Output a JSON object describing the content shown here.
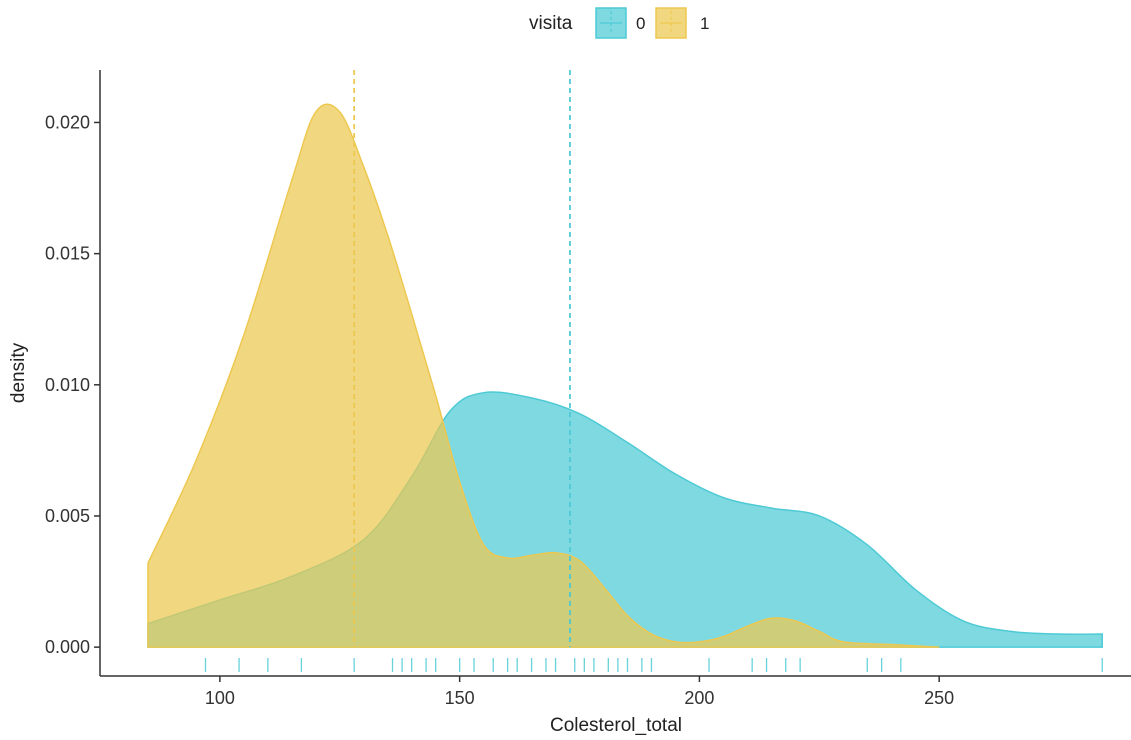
{
  "chart_data": {
    "type": "area",
    "title": "",
    "xlabel": "Colesterol_total",
    "ylabel": "density",
    "xlim": [
      75,
      290
    ],
    "ylim": [
      -0.0011,
      0.022
    ],
    "xticks": [
      100,
      150,
      200,
      250
    ],
    "yticks": [
      0.0,
      0.005,
      0.01,
      0.015,
      0.02
    ],
    "ytick_labels": [
      "0.000",
      "0.005",
      "0.010",
      "0.015",
      "0.020"
    ],
    "grid": false,
    "legend": {
      "title": "visita",
      "position": "top"
    },
    "series": [
      {
        "name": "0",
        "color": "#4ECAD5",
        "mean": 173,
        "x": [
          85,
          100,
          115,
          130,
          140,
          148,
          155,
          165,
          175,
          185,
          195,
          205,
          215,
          225,
          235,
          245,
          255,
          265,
          275,
          284
        ],
        "y": [
          0.0009,
          0.0018,
          0.0027,
          0.0041,
          0.0065,
          0.009,
          0.0097,
          0.0095,
          0.0089,
          0.0078,
          0.0066,
          0.0057,
          0.0053,
          0.005,
          0.0039,
          0.0022,
          0.001,
          0.0006,
          0.0005,
          0.0005
        ],
        "rug": [
          97,
          104,
          110,
          117,
          128,
          136,
          138,
          140,
          143,
          145,
          150,
          153,
          157,
          160,
          162,
          165,
          168,
          170,
          174,
          176,
          178,
          181,
          183,
          185,
          188,
          190,
          202,
          211,
          214,
          218,
          221,
          235,
          238,
          242,
          284
        ]
      },
      {
        "name": "1",
        "color": "#EDC850",
        "mean": 128,
        "x": [
          85,
          95,
          105,
          115,
          120,
          125,
          130,
          135,
          140,
          145,
          150,
          155,
          160,
          165,
          170,
          175,
          180,
          185,
          190,
          195,
          200,
          205,
          210,
          215,
          220,
          225,
          230,
          240,
          250
        ],
        "y": [
          0.0032,
          0.0071,
          0.0119,
          0.0178,
          0.0204,
          0.0204,
          0.0183,
          0.0157,
          0.0127,
          0.0096,
          0.0063,
          0.0039,
          0.0034,
          0.0035,
          0.0036,
          0.0033,
          0.0023,
          0.0012,
          0.0005,
          0.0002,
          0.0002,
          0.0004,
          0.0008,
          0.0011,
          0.001,
          0.0006,
          0.0002,
          0.0001,
          0.0
        ]
      }
    ]
  }
}
